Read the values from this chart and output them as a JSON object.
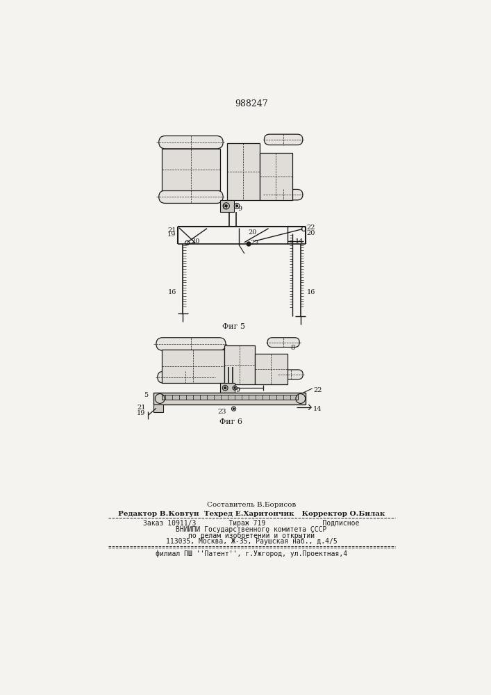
{
  "patent_number": "988247",
  "bg_color": "#f5f3f0",
  "line_color": "#1a1a1a",
  "fig5_caption": "Фиг 5",
  "fig6_caption": "Фиг 6",
  "footer_line1": "Составитель В.Борисов",
  "footer_line2": "Редактор В.Ковтун  Техред Е.Харитончик   Корректор О.Билак",
  "footer_line3": "Заказ 10911/3        Тираж 719              Подписное",
  "footer_line4": "ВНИИПИ Государственного комитета СССР",
  "footer_line5": "по делам изобретений и открытий",
  "footer_line6": "113035, Москва, Ж-35, Раушская наб., д.4/5",
  "footer_line7": "филиал ПШ ''Патент'', г.Ужгород, ул.Проектная,4",
  "label_8": "8",
  "label_9": "9",
  "label_14": "14",
  "label_16": "16",
  "label_19": "19",
  "label_20": "20",
  "label_21": "21",
  "label_22": "22",
  "label_23": "23",
  "label_5": "5"
}
